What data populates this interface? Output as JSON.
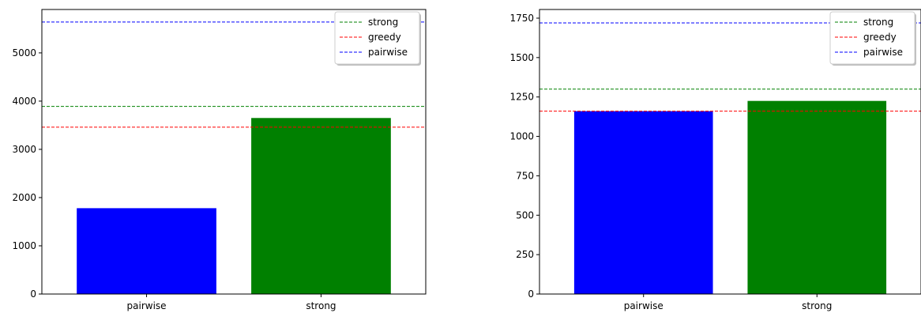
{
  "chart_data": [
    {
      "type": "bar",
      "title": "",
      "xlabel": "",
      "ylabel": "",
      "categories": [
        "pairwise",
        "strong"
      ],
      "values": [
        1780,
        3650
      ],
      "bar_colors": [
        "#0000ff",
        "#008000"
      ],
      "ylim": [
        0,
        5900
      ],
      "yticks": [
        0,
        1000,
        2000,
        3000,
        4000,
        5000
      ],
      "grid": false,
      "reference_lines": [
        {
          "name": "strong",
          "value": 3890,
          "color": "#008000",
          "style": "dashed"
        },
        {
          "name": "greedy",
          "value": 3460,
          "color": "#ff0000",
          "style": "dashed"
        },
        {
          "name": "pairwise",
          "value": 5640,
          "color": "#0000ff",
          "style": "dashed"
        }
      ],
      "legend": {
        "placement": "top-right",
        "entries": [
          "strong",
          "greedy",
          "pairwise"
        ]
      }
    },
    {
      "type": "bar",
      "title": "",
      "xlabel": "",
      "ylabel": "",
      "categories": [
        "pairwise",
        "strong"
      ],
      "values": [
        1160,
        1225
      ],
      "bar_colors": [
        "#0000ff",
        "#008000"
      ],
      "ylim": [
        0,
        1805
      ],
      "yticks": [
        0,
        250,
        500,
        750,
        1000,
        1250,
        1500,
        1750
      ],
      "grid": false,
      "reference_lines": [
        {
          "name": "strong",
          "value": 1300,
          "color": "#008000",
          "style": "dashed"
        },
        {
          "name": "greedy",
          "value": 1160,
          "color": "#ff0000",
          "style": "dashed"
        },
        {
          "name": "pairwise",
          "value": 1720,
          "color": "#0000ff",
          "style": "dashed"
        }
      ],
      "legend": {
        "placement": "top-right",
        "entries": [
          "strong",
          "greedy",
          "pairwise"
        ]
      }
    }
  ]
}
